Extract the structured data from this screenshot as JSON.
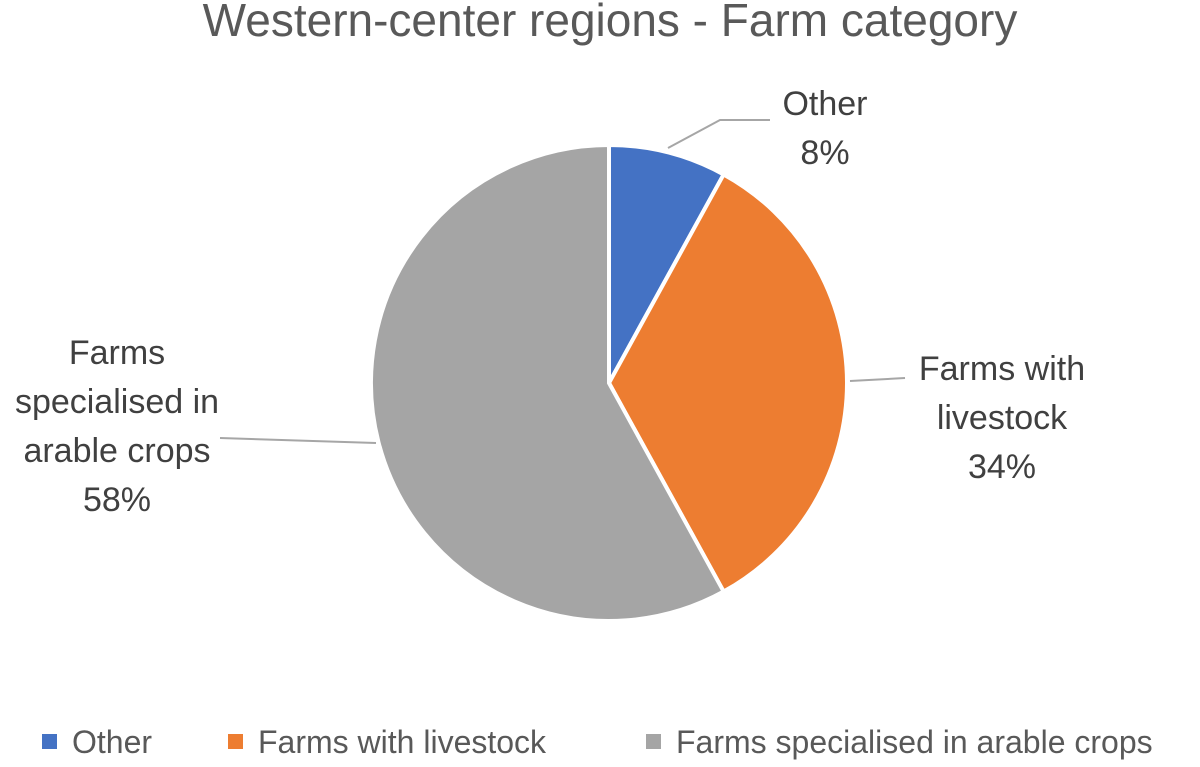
{
  "chart_data": {
    "type": "pie",
    "title": "Western-center regions - Farm category",
    "slices": [
      {
        "name": "Other",
        "value": 8,
        "label": "8%",
        "color": "#4472C4"
      },
      {
        "name": "Farms with livestock",
        "value": 34,
        "label": "34%",
        "color": "#ED7D31"
      },
      {
        "name": "Farms specialised in arable crops",
        "value": 58,
        "label": "58%",
        "color": "#A5A5A5"
      }
    ],
    "legend": {
      "position": "bottom",
      "entries": [
        "Other",
        "Farms with livestock",
        "Farms specialised in arable crops"
      ]
    },
    "data_labels": [
      {
        "lines": [
          "Other"
        ],
        "value": "8%"
      },
      {
        "lines": [
          "Farms with",
          "livestock"
        ],
        "value": "34%"
      },
      {
        "lines": [
          "Farms",
          "specialised in",
          "arable crops"
        ],
        "value": "58%"
      }
    ]
  }
}
